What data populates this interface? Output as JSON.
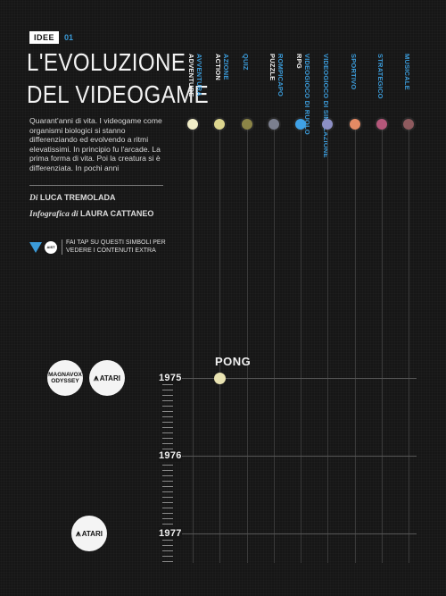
{
  "header": {
    "section": "IDEE",
    "number": "01"
  },
  "title_lines": [
    "L'EVOLUZIONE",
    "DEL VIDEOGAME"
  ],
  "description": "Quarant'anni di vita. I videogame come organismi biologici si stanno differenziando ed evolvendo a ritmi elevatissimi. In principio fu l'arcade. La prima forma di vita. Poi la creatura si è differenziata. In pochi anni",
  "credits": {
    "author_prefix": "Di",
    "author": "LUCA TREMOLADA",
    "graphics_prefix": "Infografica di",
    "graphics": "LAURA CATTANEO"
  },
  "extra": {
    "badge": "AIST",
    "hint": "FAI TAP SU QUESTI SIMBOLI PER VEDERE I CONTENUTI EXTRA"
  },
  "genres": [
    {
      "it": "AVVENTURA",
      "en": "ADVENTURE",
      "color": "#f1edc8"
    },
    {
      "it": "AZIONE",
      "en": "ACTION",
      "color": "#dcd58e"
    },
    {
      "it": "QUIZ",
      "en": "",
      "color": "#8c8547"
    },
    {
      "it": "ROMPICAPO",
      "en": "PUZZLE",
      "color": "#7b7f8e"
    },
    {
      "it": "VIDEOGIOCO DI RUOLO",
      "en": "RPG",
      "color": "#3fa1e6"
    },
    {
      "it": "VIDEOGIOCO DI SIMULAZIONE",
      "en": "",
      "color": "#8d8fc4"
    },
    {
      "it": "SPORTIVO",
      "en": "",
      "color": "#e48a64"
    },
    {
      "it": "STRATEGICO",
      "en": "",
      "color": "#b4577a"
    },
    {
      "it": "MUSICALE",
      "en": "",
      "color": "#8e5a5e"
    }
  ],
  "timeline": {
    "years": [
      "1975",
      "1976",
      "1977"
    ],
    "event": {
      "label": "PONG",
      "color": "#e9e3b2"
    },
    "logos": {
      "magnavox": [
        "MAGNAVOX",
        "ODYSSEY"
      ],
      "atari_1975": "ATARI",
      "atari_1977": "ATARI"
    }
  }
}
